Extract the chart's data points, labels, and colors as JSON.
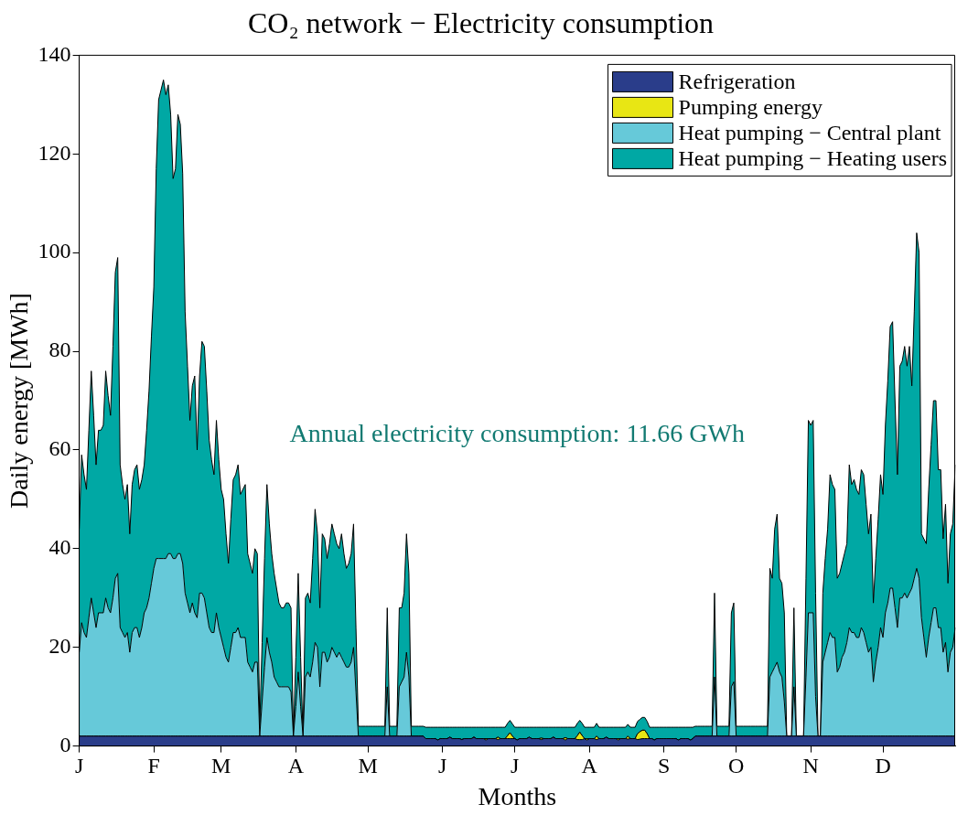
{
  "chart_data": {
    "type": "area",
    "stacked": true,
    "title": "CO₂ network − Electricity consumption",
    "xlabel": "Months",
    "ylabel": "Daily energy [MWh]",
    "categories": [
      "J",
      null,
      null,
      null,
      null,
      null,
      null,
      null,
      null,
      null,
      null,
      null,
      null,
      null,
      null,
      null,
      null,
      null,
      null,
      null,
      null,
      null,
      null,
      null,
      null,
      null,
      null,
      null,
      null,
      null,
      null,
      "F",
      null,
      null,
      null,
      null,
      null,
      null,
      null,
      null,
      null,
      null,
      null,
      null,
      null,
      null,
      null,
      null,
      null,
      null,
      null,
      null,
      null,
      null,
      null,
      null,
      null,
      null,
      null,
      "M",
      null,
      null,
      null,
      null,
      null,
      null,
      null,
      null,
      null,
      null,
      null,
      null,
      null,
      null,
      null,
      null,
      null,
      null,
      null,
      null,
      null,
      null,
      null,
      null,
      null,
      null,
      null,
      null,
      null,
      null,
      "A",
      null,
      null,
      null,
      null,
      null,
      null,
      null,
      null,
      null,
      null,
      null,
      null,
      null,
      null,
      null,
      null,
      null,
      null,
      null,
      null,
      null,
      null,
      null,
      null,
      null,
      null,
      null,
      null,
      null,
      "M",
      null,
      null,
      null,
      null,
      null,
      null,
      null,
      null,
      null,
      null,
      null,
      null,
      null,
      null,
      null,
      null,
      null,
      null,
      null,
      null,
      null,
      null,
      null,
      null,
      null,
      null,
      null,
      null,
      null,
      null,
      "J",
      null,
      null,
      null,
      null,
      null,
      null,
      null,
      null,
      null,
      null,
      null,
      null,
      null,
      null,
      null,
      null,
      null,
      null,
      null,
      null,
      null,
      null,
      null,
      null,
      null,
      null,
      null,
      null,
      null,
      "J",
      null,
      null,
      null,
      null,
      null,
      null,
      null,
      null,
      null,
      null,
      null,
      null,
      null,
      null,
      null,
      null,
      null,
      null,
      null,
      null,
      null,
      null,
      null,
      null,
      null,
      null,
      null,
      null,
      null,
      null,
      "A",
      null,
      null,
      null,
      null,
      null,
      null,
      null,
      null,
      null,
      null,
      null,
      null,
      null,
      null,
      null,
      null,
      null,
      null,
      null,
      null,
      null,
      null,
      null,
      null,
      null,
      null,
      null,
      null,
      null,
      null,
      "S",
      null,
      null,
      null,
      null,
      null,
      null,
      null,
      null,
      null,
      null,
      null,
      null,
      null,
      null,
      null,
      null,
      null,
      null,
      null,
      null,
      null,
      null,
      null,
      null,
      null,
      null,
      null,
      null,
      null,
      "O",
      null,
      null,
      null,
      null,
      null,
      null,
      null,
      null,
      null,
      null,
      null,
      null,
      null,
      null,
      null,
      null,
      null,
      null,
      null,
      null,
      null,
      null,
      null,
      null,
      null,
      null,
      null,
      null,
      null,
      null,
      "N",
      null,
      null,
      null,
      null,
      null,
      null,
      null,
      null,
      null,
      null,
      null,
      null,
      null,
      null,
      null,
      null,
      null,
      null,
      null,
      null,
      null,
      null,
      null,
      null,
      null,
      null,
      null,
      null,
      null,
      "D",
      null,
      null,
      null,
      null,
      null,
      null,
      null,
      null,
      null,
      null,
      null,
      null,
      null,
      null,
      null,
      null,
      null,
      null,
      null,
      null,
      null,
      null,
      null,
      null,
      null,
      null,
      null,
      null,
      null,
      null
    ],
    "series": [
      {
        "name": "Refrigeration",
        "color": "#2a3d8a",
        "values": [
          2,
          2,
          2,
          2,
          2,
          2,
          2,
          2,
          2,
          2,
          2,
          2,
          2,
          2,
          2,
          2,
          2,
          2,
          2,
          2,
          2,
          2,
          2,
          2,
          2,
          2,
          2,
          2,
          2,
          2,
          2,
          2,
          2,
          2,
          2,
          2,
          2,
          2,
          2,
          2,
          2,
          2,
          2,
          2,
          2,
          2,
          2,
          2,
          2,
          2,
          2,
          2,
          2,
          2,
          2,
          2,
          2,
          2,
          2,
          2,
          2,
          2,
          2,
          2,
          2,
          2,
          2,
          2,
          2,
          2,
          2,
          2,
          2,
          2,
          2,
          2,
          2,
          2,
          2,
          2,
          2,
          2,
          2,
          2,
          2,
          2,
          2,
          2,
          2,
          2,
          2,
          2,
          2,
          2,
          2,
          2,
          2,
          2,
          2,
          2,
          2,
          2,
          2,
          2,
          2,
          2,
          2,
          2,
          2,
          2,
          2,
          2,
          2,
          2,
          2,
          2,
          2,
          2,
          2,
          2,
          2,
          2,
          2,
          2,
          2,
          2,
          2,
          2,
          2,
          2,
          2,
          2,
          2,
          2,
          2,
          2,
          2,
          2,
          2,
          2,
          2,
          2,
          2,
          2,
          1.5,
          1.5,
          1.5,
          1.5,
          1.5,
          1.2,
          1.5,
          1.5,
          1.5,
          1.5,
          1.8,
          1.5,
          1.5,
          1.5,
          1.5,
          1.3,
          1.5,
          1.5,
          1.5,
          1.5,
          1.8,
          1.5,
          1.5,
          1.5,
          1.5,
          1.2,
          1.5,
          1.5,
          1.5,
          1.5,
          1.3,
          1.5,
          1.5,
          1.5,
          1.5,
          1.5,
          1.5,
          1.5,
          1.2,
          1.5,
          1.5,
          1.5,
          1.5,
          1.8,
          1.5,
          1.5,
          1.5,
          1.5,
          1.3,
          1.5,
          1.5,
          1.5,
          1.5,
          1.8,
          1.5,
          1.5,
          1.5,
          1.5,
          1.2,
          1.5,
          1.5,
          1.5,
          1.5,
          1.3,
          1.3,
          1.3,
          1.5,
          1.2,
          1.5,
          1.5,
          1.5,
          1.3,
          1.5,
          1.5,
          1.5,
          1.8,
          1.5,
          1.5,
          1.5,
          1.5,
          1.2,
          1.5,
          1.5,
          1.5,
          1.4,
          1.5,
          1.5,
          1.5,
          1.3,
          1.4,
          1.5,
          1.5,
          1.5,
          1.5,
          1.5,
          1.2,
          1.5,
          1.5,
          1.5,
          1.5,
          1.5,
          1.5,
          1.5,
          1.5,
          1.5,
          1.2,
          1.5,
          1.5,
          1.5,
          1.5,
          1.2,
          1.5,
          2,
          2,
          2,
          2,
          2,
          2,
          2,
          2,
          2,
          2,
          2,
          2,
          2,
          2,
          2,
          2,
          2,
          2,
          2,
          2,
          2,
          2,
          2,
          2,
          2,
          2,
          2,
          2,
          2,
          2,
          2,
          2,
          2,
          2,
          2,
          2,
          2,
          2,
          2,
          2,
          2,
          2,
          2,
          2,
          2,
          2,
          2,
          2,
          2,
          2,
          2,
          2,
          2,
          2,
          2,
          2,
          2,
          2,
          2,
          2,
          2,
          2,
          2,
          2,
          2,
          2,
          2,
          2,
          2,
          2,
          2,
          2,
          2,
          2,
          2,
          2,
          2,
          2,
          2,
          2,
          2,
          2,
          2,
          2,
          2,
          2,
          2,
          2,
          2,
          2,
          2,
          2,
          2,
          2,
          2,
          2,
          2,
          2,
          2,
          2,
          2,
          2,
          2,
          2,
          2,
          2,
          2,
          2,
          2
        ]
      },
      {
        "name": "Pumping energy",
        "color": "#e8e614",
        "values": [
          0,
          0,
          0,
          0,
          0,
          0,
          0,
          0,
          0,
          0,
          0,
          0,
          0,
          0,
          0,
          0,
          0,
          0,
          0,
          0,
          0,
          0,
          0,
          0,
          0,
          0,
          0,
          0,
          0,
          0,
          0,
          0,
          0,
          0,
          0,
          0,
          0,
          0,
          0,
          0,
          0,
          0,
          0,
          0,
          0,
          0,
          0,
          0,
          0,
          0,
          0,
          0,
          0,
          0,
          0,
          0,
          0,
          0,
          0,
          0,
          0,
          0,
          0,
          0,
          0,
          0,
          0,
          0,
          0,
          0,
          0,
          0,
          0,
          0,
          0,
          0,
          0,
          0,
          0,
          0,
          0,
          0,
          0,
          0,
          0,
          0,
          0,
          0,
          0,
          0,
          0,
          0,
          0,
          0,
          0,
          0,
          0,
          0,
          0,
          0,
          0,
          0,
          0,
          0,
          0,
          0,
          0,
          0,
          0,
          0,
          0,
          0,
          0,
          0,
          0,
          0,
          0,
          0,
          0,
          0,
          0,
          0,
          0,
          0,
          0,
          0,
          0,
          0,
          0,
          0,
          0,
          0,
          0,
          0,
          0,
          0,
          0,
          0,
          0,
          0,
          0,
          0,
          0,
          0,
          0,
          0,
          0,
          0,
          0,
          0,
          0,
          0,
          0,
          0,
          0,
          0,
          0,
          0,
          0,
          0,
          0,
          0,
          0,
          0,
          0,
          0,
          0,
          0,
          0,
          0.3,
          0,
          0,
          0,
          0,
          0.5,
          0,
          0,
          0,
          0.6,
          1.2,
          0.5,
          0,
          0,
          0,
          0,
          0,
          0,
          0,
          0,
          0,
          0,
          0,
          0.3,
          0,
          0,
          0,
          0,
          0,
          0,
          0,
          0,
          0,
          0.5,
          0,
          0,
          0,
          0,
          0.8,
          1.5,
          0.8,
          0,
          0.3,
          0,
          0,
          0,
          0.7,
          0,
          0,
          0,
          0,
          0,
          0,
          0,
          0,
          0.3,
          0,
          0,
          0,
          0.6,
          0,
          0,
          0,
          1.2,
          1.5,
          1.7,
          1.7,
          1,
          0,
          0,
          0,
          0,
          0,
          0,
          0,
          0,
          0,
          0,
          0,
          0,
          0,
          0,
          0,
          0,
          0,
          0,
          0,
          0,
          0,
          0,
          0,
          0,
          0,
          0,
          0,
          0,
          0,
          0,
          0,
          0,
          0,
          0,
          0,
          0,
          0,
          0,
          0,
          0,
          0,
          0,
          0,
          0,
          0,
          0,
          0,
          0,
          0,
          0,
          0,
          0,
          0,
          0,
          0,
          0,
          0,
          0,
          0,
          0,
          0,
          0,
          0,
          0,
          0,
          0,
          0,
          0,
          0,
          0,
          0,
          0,
          0,
          0,
          0,
          0,
          0,
          0,
          0,
          0,
          0,
          0,
          0,
          0,
          0,
          0,
          0,
          0,
          0,
          0,
          0,
          0,
          0,
          0,
          0,
          0,
          0,
          0,
          0,
          0,
          0,
          0,
          0,
          0,
          0,
          0,
          0,
          0,
          0,
          0,
          0,
          0,
          0,
          0,
          0,
          0,
          0,
          0,
          0,
          0,
          0,
          0,
          0,
          0,
          0,
          0,
          0,
          0
        ]
      },
      {
        "name": "Heat pumping − Central plant",
        "color": "#66c9d9",
        "values": [
          17,
          23,
          21,
          20,
          24,
          28,
          25,
          22,
          25,
          25,
          25,
          28,
          26,
          25,
          28,
          32,
          33,
          22,
          21,
          20,
          21,
          17,
          21,
          22,
          22,
          20,
          22,
          25,
          26,
          28,
          31,
          34,
          36,
          36,
          36,
          36,
          36,
          37,
          37,
          36,
          36,
          37,
          37,
          35,
          29,
          27,
          25,
          27,
          25,
          24,
          29,
          29,
          28,
          25,
          22,
          21,
          21,
          25,
          22,
          20,
          18,
          16,
          15,
          18,
          21,
          21,
          22,
          20,
          20,
          20,
          15,
          14,
          13,
          15,
          15,
          0,
          7,
          14,
          20,
          17,
          15,
          12,
          11,
          10,
          10,
          10,
          10,
          10,
          9,
          0,
          6,
          13,
          6,
          0,
          12,
          13,
          12,
          15,
          19,
          18,
          10,
          17,
          17,
          15,
          16,
          18,
          17,
          16,
          17,
          16,
          15,
          14,
          14,
          15,
          18,
          9,
          0,
          0,
          0,
          0,
          0,
          0,
          0,
          0,
          0,
          0,
          0,
          0,
          10,
          0,
          0,
          0,
          0,
          10,
          11,
          12,
          17,
          12,
          0,
          0,
          0,
          0,
          0,
          0,
          0,
          0,
          0,
          0,
          0,
          0,
          0,
          0,
          0,
          0,
          0,
          0,
          0,
          0,
          0,
          0,
          0,
          0,
          0,
          0,
          0,
          0,
          0,
          0,
          0,
          0,
          0,
          0,
          0,
          0,
          0,
          0,
          0,
          0,
          0,
          0,
          0,
          0,
          0,
          0,
          0,
          0,
          0,
          0,
          0,
          0,
          0,
          0,
          0,
          0,
          0,
          0,
          0,
          0,
          0,
          0,
          0,
          0,
          0,
          0,
          0,
          0,
          0,
          0,
          0,
          0,
          0,
          0,
          0,
          0,
          0,
          0,
          0,
          0,
          0,
          0,
          0,
          0,
          0,
          0,
          0,
          0,
          0,
          0,
          0,
          0,
          0,
          0,
          0,
          0,
          0,
          0,
          0,
          0,
          0,
          0,
          0,
          0,
          0,
          0,
          0,
          0,
          0,
          0,
          0,
          0,
          0,
          0,
          0,
          0,
          0,
          0,
          0,
          0,
          0,
          0,
          0,
          0,
          0,
          0,
          12,
          0,
          0,
          0,
          0,
          0,
          0,
          10,
          11,
          0,
          0,
          0,
          0,
          0,
          0,
          0,
          0,
          0,
          0,
          0,
          0,
          0,
          0,
          12,
          13,
          14,
          15,
          13,
          12,
          7,
          0,
          0,
          0,
          10,
          0,
          0,
          0,
          0,
          12,
          25,
          25,
          25,
          8,
          0,
          0,
          15,
          17,
          19,
          21,
          20,
          20,
          13,
          14,
          16,
          17,
          19,
          22,
          21,
          21,
          20,
          20,
          22,
          21,
          19,
          17,
          18,
          11,
          15,
          18,
          22,
          20,
          25,
          27,
          30,
          30,
          26,
          22,
          28,
          28,
          29,
          28,
          29,
          30,
          32,
          34,
          32,
          24,
          20,
          16,
          20,
          23,
          26,
          26,
          22,
          22,
          17,
          19,
          13,
          17,
          18,
          22
        ]
      },
      {
        "name": "Heat pumping − Heating users",
        "color": "#00a8a4",
        "values": [
          25,
          34,
          32,
          30,
          38,
          46,
          40,
          33,
          37,
          37,
          38,
          46,
          43,
          40,
          51,
          62,
          64,
          33,
          30,
          28,
          30,
          24,
          30,
          32,
          33,
          30,
          30,
          30,
          36,
          42,
          50,
          57,
          79,
          93,
          95,
          97,
          94,
          95,
          89,
          77,
          79,
          89,
          87,
          79,
          57,
          48,
          39,
          44,
          48,
          34,
          44,
          51,
          51,
          45,
          38,
          35,
          32,
          39,
          34,
          30,
          30,
          25,
          20,
          26,
          31,
          32,
          33,
          29,
          30,
          31,
          22,
          21,
          20,
          23,
          22,
          2,
          12,
          22,
          31,
          26,
          22,
          21,
          19,
          17,
          16,
          16,
          17,
          17,
          17,
          0,
          10,
          20,
          10,
          0,
          16,
          16,
          15,
          21,
          27,
          23,
          16,
          24,
          23,
          21,
          23,
          25,
          24,
          23,
          21,
          25,
          22,
          20,
          21,
          22,
          25,
          13,
          2,
          2,
          2,
          2,
          2,
          2,
          2,
          2,
          2,
          2,
          2,
          2,
          16,
          2,
          2,
          2,
          2,
          16,
          15,
          17,
          24,
          21,
          2,
          2,
          2,
          2,
          2,
          2,
          2.3,
          2.3,
          2.3,
          2.3,
          2.3,
          2.6,
          2.3,
          2.3,
          2.3,
          2.3,
          2,
          2.3,
          2.3,
          2.3,
          2.3,
          2.5,
          2.3,
          2.3,
          2.3,
          2.3,
          2,
          2.3,
          2.3,
          2.3,
          2.3,
          2.3,
          2.3,
          2.3,
          2.3,
          2.3,
          2,
          2.3,
          2.3,
          2.3,
          2.5,
          2.5,
          2.5,
          2.3,
          2.6,
          2.3,
          2.3,
          2.3,
          2.3,
          2,
          2.3,
          2.3,
          2.3,
          2.3,
          2.2,
          2.3,
          2.3,
          2.3,
          2.3,
          2,
          2.3,
          2.3,
          2.3,
          2.3,
          2.1,
          2.3,
          2.3,
          2.3,
          2.3,
          2.5,
          2.4,
          2.5,
          2.3,
          2.3,
          2.3,
          2.3,
          2.3,
          2.6,
          2.3,
          2.3,
          2.3,
          2,
          2.3,
          2.3,
          2.3,
          2.3,
          2.3,
          2.3,
          2.3,
          2.3,
          2.4,
          2.3,
          2.3,
          2.3,
          2.5,
          2.5,
          2.6,
          2.6,
          2.5,
          2.3,
          2.3,
          2.6,
          2.3,
          2.3,
          2.3,
          2.3,
          2.3,
          2.3,
          2.3,
          2.3,
          2.3,
          2.6,
          2.3,
          2.3,
          2.3,
          2.3,
          2.6,
          2.3,
          2,
          2,
          2,
          2,
          2,
          2,
          2,
          2,
          17,
          2,
          2,
          2,
          2,
          2,
          2,
          15,
          16,
          2,
          2,
          2,
          2,
          2,
          2,
          2,
          2,
          2,
          2,
          2,
          2,
          2,
          2,
          22,
          19,
          28,
          30,
          19,
          19,
          18,
          0,
          0,
          0,
          16,
          0,
          0,
          0,
          0,
          20,
          39,
          38,
          39,
          21,
          0,
          0,
          14,
          19,
          23,
          32,
          31,
          30,
          19,
          19,
          19,
          20,
          20,
          33,
          30,
          31,
          30,
          29,
          32,
          32,
          28,
          24,
          27,
          16,
          21,
          26,
          31,
          29,
          38,
          45,
          53,
          54,
          42,
          31,
          47,
          48,
          50,
          47,
          50,
          41,
          54,
          68,
          66,
          17,
          20,
          23,
          30,
          36,
          42,
          42,
          32,
          32,
          23,
          28,
          18,
          24,
          25,
          33
        ]
      }
    ],
    "ylim": [
      0,
      140
    ],
    "yticks": [
      0,
      20,
      40,
      60,
      80,
      100,
      120,
      140
    ],
    "grid": false,
    "legend": "top right",
    "annotations": [
      "Annual electricity consumption: 11.66 GWh"
    ]
  }
}
